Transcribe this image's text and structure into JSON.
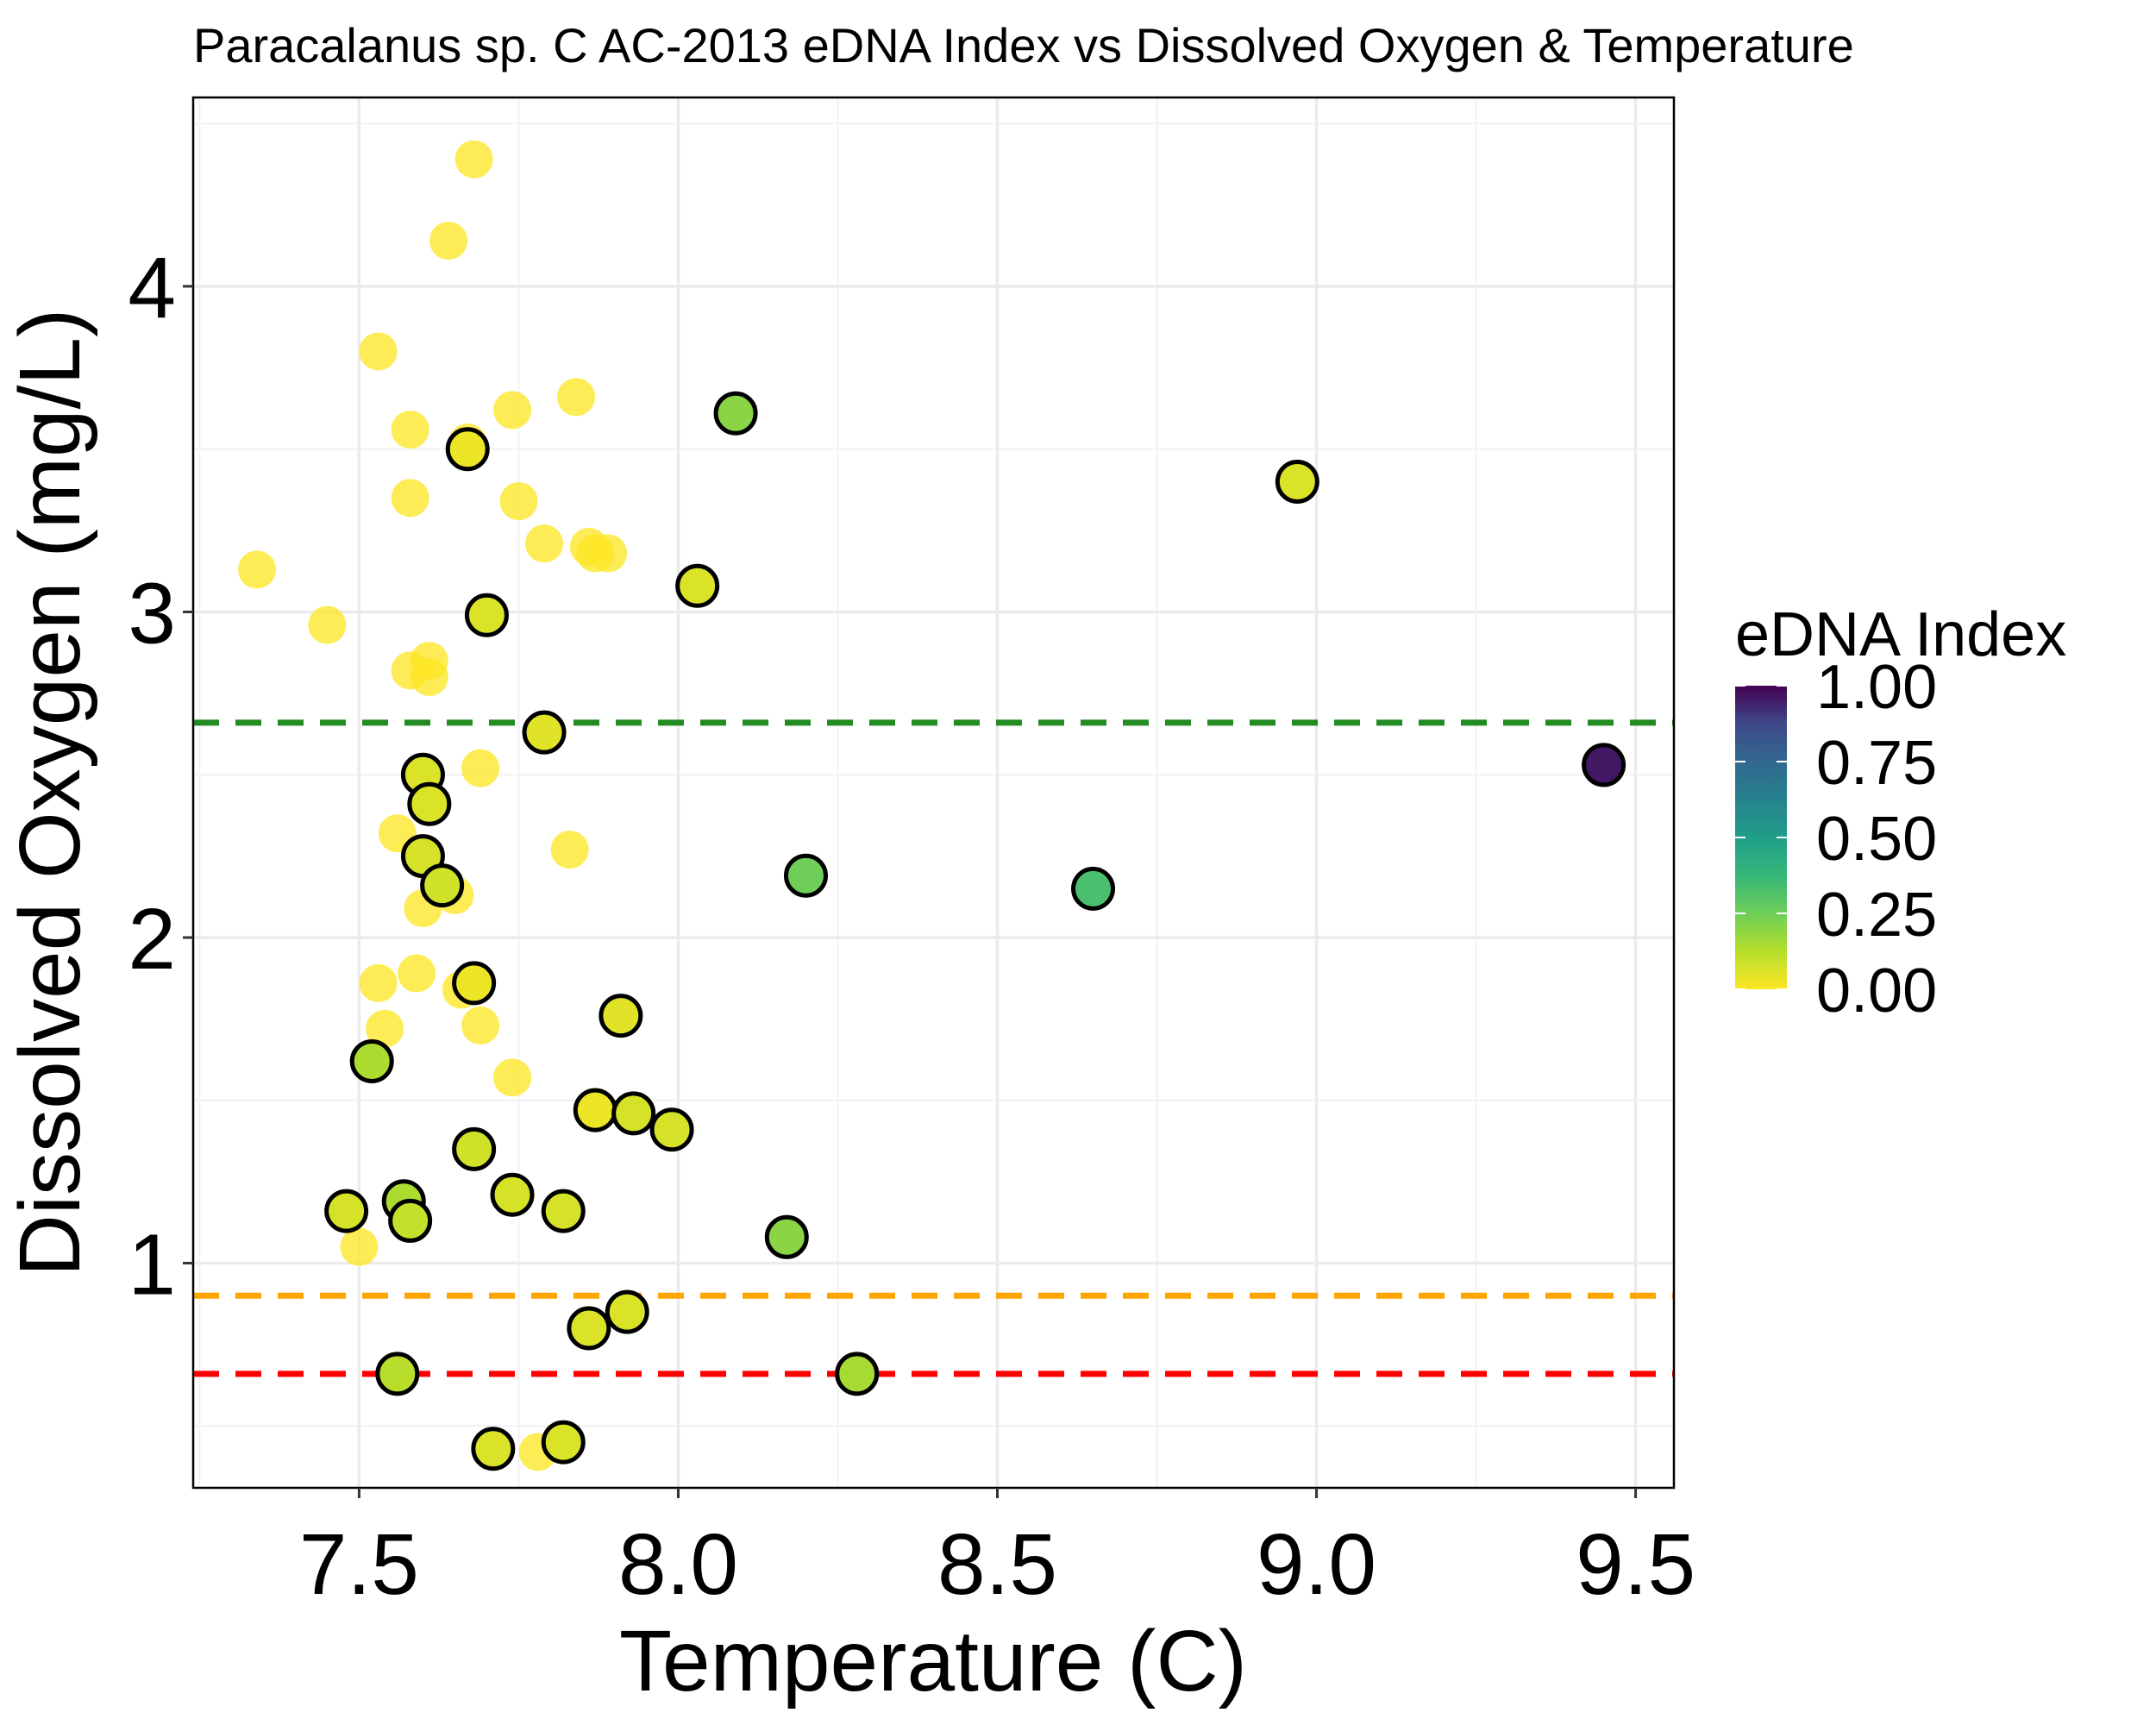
{
  "chart_data": {
    "type": "scatter",
    "title": "Paracalanus sp. C AC-2013 eDNA Index vs Dissolved Oxygen & Temperature",
    "xlabel": "Temperature (C)",
    "ylabel": "Dissolved Oxygen (mg/L)",
    "xlim": [
      7.24,
      9.56
    ],
    "ylim": [
      0.31,
      4.58
    ],
    "x_ticks": [
      {
        "value": 7.5,
        "label": "7.5"
      },
      {
        "value": 8.0,
        "label": "8.0"
      },
      {
        "value": 8.5,
        "label": "8.5"
      },
      {
        "value": 9.0,
        "label": "9.0"
      },
      {
        "value": 9.5,
        "label": "9.5"
      }
    ],
    "y_ticks": [
      {
        "value": 1,
        "label": "1"
      },
      {
        "value": 2,
        "label": "2"
      },
      {
        "value": 3,
        "label": "3"
      },
      {
        "value": 4,
        "label": "4"
      }
    ],
    "grid": true,
    "reference_lines": [
      {
        "y": 2.66,
        "color": "#228B22",
        "style": "dashed"
      },
      {
        "y": 0.9,
        "color": "#FFA500",
        "style": "dashed"
      },
      {
        "y": 0.66,
        "color": "#FF0000",
        "style": "dashed"
      }
    ],
    "legend": {
      "title": "eDNA Index",
      "placement": "right",
      "colormap": "viridis",
      "ticks": [
        {
          "value": 1.0,
          "label": "1.00"
        },
        {
          "value": 0.75,
          "label": "0.75"
        },
        {
          "value": 0.5,
          "label": "0.50"
        },
        {
          "value": 0.25,
          "label": "0.25"
        },
        {
          "value": 0.0,
          "label": "0.00"
        }
      ]
    },
    "series": [
      {
        "group": "eDNA not detected (no outline, semi-transparent)",
        "points": [
          {
            "x": 7.68,
            "y": 4.39,
            "edna": 0.0
          },
          {
            "x": 7.64,
            "y": 4.14,
            "edna": 0.0
          },
          {
            "x": 7.53,
            "y": 3.8,
            "edna": 0.0
          },
          {
            "x": 7.74,
            "y": 3.62,
            "edna": 0.0
          },
          {
            "x": 7.84,
            "y": 3.66,
            "edna": 0.0
          },
          {
            "x": 7.58,
            "y": 3.56,
            "edna": 0.0
          },
          {
            "x": 7.67,
            "y": 3.52,
            "edna": 0.0
          },
          {
            "x": 7.58,
            "y": 3.35,
            "edna": 0.0
          },
          {
            "x": 7.75,
            "y": 3.34,
            "edna": 0.0
          },
          {
            "x": 7.79,
            "y": 3.21,
            "edna": 0.0
          },
          {
            "x": 7.86,
            "y": 3.2,
            "edna": 0.0
          },
          {
            "x": 7.87,
            "y": 3.18,
            "edna": 0.0
          },
          {
            "x": 7.89,
            "y": 3.18,
            "edna": 0.0
          },
          {
            "x": 7.34,
            "y": 3.13,
            "edna": 0.0
          },
          {
            "x": 7.45,
            "y": 2.96,
            "edna": 0.0
          },
          {
            "x": 7.61,
            "y": 2.85,
            "edna": 0.0
          },
          {
            "x": 7.58,
            "y": 2.82,
            "edna": 0.0
          },
          {
            "x": 7.61,
            "y": 2.8,
            "edna": 0.0
          },
          {
            "x": 7.69,
            "y": 2.52,
            "edna": 0.0
          },
          {
            "x": 7.56,
            "y": 2.32,
            "edna": 0.0
          },
          {
            "x": 7.83,
            "y": 2.27,
            "edna": 0.0
          },
          {
            "x": 7.65,
            "y": 2.13,
            "edna": 0.0
          },
          {
            "x": 7.6,
            "y": 2.09,
            "edna": 0.0
          },
          {
            "x": 7.59,
            "y": 1.89,
            "edna": 0.0
          },
          {
            "x": 7.53,
            "y": 1.86,
            "edna": 0.0
          },
          {
            "x": 7.66,
            "y": 1.84,
            "edna": 0.0
          },
          {
            "x": 7.54,
            "y": 1.72,
            "edna": 0.0
          },
          {
            "x": 7.69,
            "y": 1.73,
            "edna": 0.0
          },
          {
            "x": 7.74,
            "y": 1.57,
            "edna": 0.0
          },
          {
            "x": 7.87,
            "y": 1.48,
            "edna": 0.0
          },
          {
            "x": 7.5,
            "y": 1.05,
            "edna": 0.0
          },
          {
            "x": 7.78,
            "y": 0.42,
            "edna": 0.0
          }
        ]
      },
      {
        "group": "eDNA detected (black outline)",
        "points": [
          {
            "x": 7.67,
            "y": 3.5,
            "edna": 0.03
          },
          {
            "x": 8.09,
            "y": 3.61,
            "edna": 0.2
          },
          {
            "x": 8.97,
            "y": 3.4,
            "edna": 0.06
          },
          {
            "x": 8.03,
            "y": 3.08,
            "edna": 0.06
          },
          {
            "x": 7.7,
            "y": 2.99,
            "edna": 0.06
          },
          {
            "x": 7.79,
            "y": 2.63,
            "edna": 0.05
          },
          {
            "x": 9.45,
            "y": 2.53,
            "edna": 0.96
          },
          {
            "x": 7.6,
            "y": 2.5,
            "edna": 0.06
          },
          {
            "x": 7.61,
            "y": 2.41,
            "edna": 0.06
          },
          {
            "x": 7.6,
            "y": 2.25,
            "edna": 0.07
          },
          {
            "x": 7.63,
            "y": 2.16,
            "edna": 0.08
          },
          {
            "x": 8.2,
            "y": 2.19,
            "edna": 0.25
          },
          {
            "x": 8.65,
            "y": 2.15,
            "edna": 0.33
          },
          {
            "x": 7.68,
            "y": 1.86,
            "edna": 0.03
          },
          {
            "x": 7.91,
            "y": 1.76,
            "edna": 0.05
          },
          {
            "x": 7.52,
            "y": 1.62,
            "edna": 0.14
          },
          {
            "x": 7.87,
            "y": 1.47,
            "edna": 0.03
          },
          {
            "x": 7.93,
            "y": 1.46,
            "edna": 0.07
          },
          {
            "x": 7.99,
            "y": 1.41,
            "edna": 0.07
          },
          {
            "x": 7.68,
            "y": 1.35,
            "edna": 0.08
          },
          {
            "x": 7.74,
            "y": 1.21,
            "edna": 0.07
          },
          {
            "x": 7.57,
            "y": 1.19,
            "edna": 0.14
          },
          {
            "x": 7.48,
            "y": 1.16,
            "edna": 0.07
          },
          {
            "x": 7.82,
            "y": 1.16,
            "edna": 0.07
          },
          {
            "x": 7.58,
            "y": 1.13,
            "edna": 0.1
          },
          {
            "x": 8.17,
            "y": 1.08,
            "edna": 0.2
          },
          {
            "x": 7.92,
            "y": 0.85,
            "edna": 0.06
          },
          {
            "x": 7.86,
            "y": 0.8,
            "edna": 0.06
          },
          {
            "x": 7.56,
            "y": 0.66,
            "edna": 0.12
          },
          {
            "x": 8.28,
            "y": 0.66,
            "edna": 0.15
          },
          {
            "x": 7.82,
            "y": 0.45,
            "edna": 0.06
          },
          {
            "x": 7.71,
            "y": 0.43,
            "edna": 0.06
          }
        ]
      }
    ]
  }
}
